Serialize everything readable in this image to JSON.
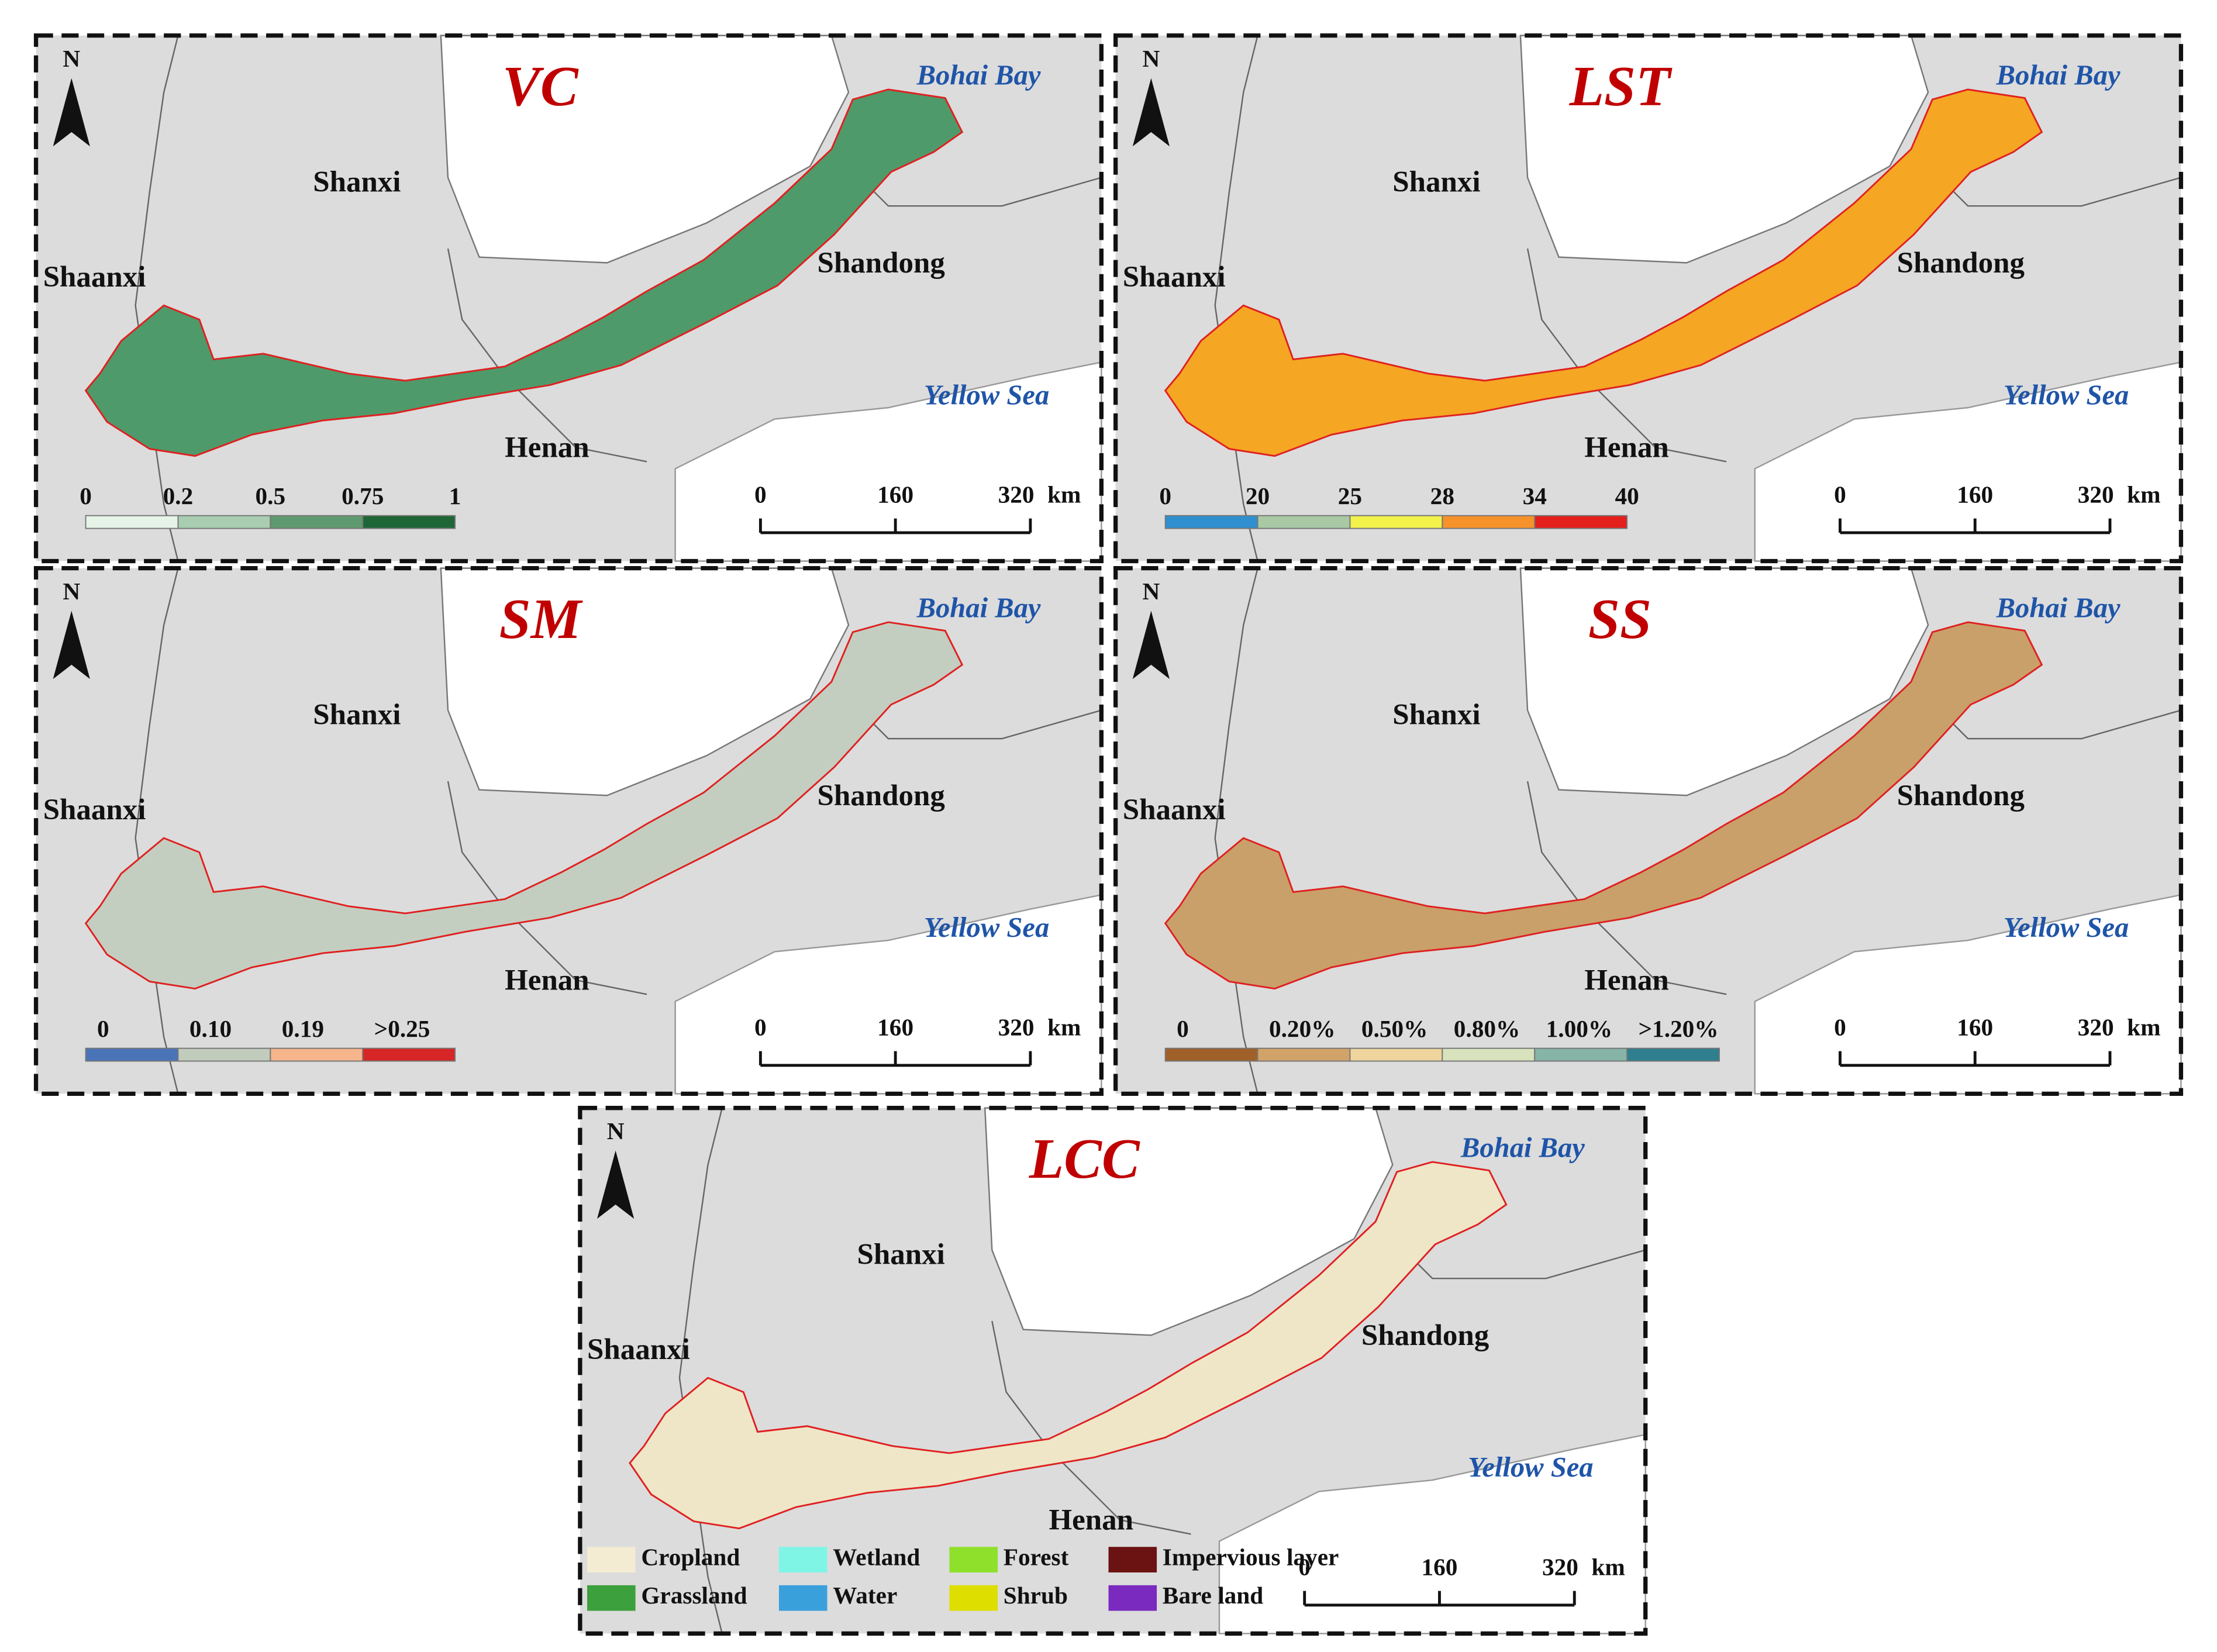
{
  "panels": [
    {
      "title": "VC",
      "north": "N",
      "labels": [
        "Shanxi",
        "Shaanxi",
        "Shandong",
        "Henan",
        "Bohai Bay",
        "Yellow Sea"
      ],
      "scale": [
        "0",
        "160",
        "320",
        "km"
      ],
      "region_color": "#4f9a6a",
      "legend": {
        "labels": [
          "0",
          "0.2",
          "0.5",
          "0.75",
          "1"
        ],
        "colors": [
          "#e6f4e8",
          "#a8cdb0",
          "#5f9a6e",
          "#1f6636"
        ]
      }
    },
    {
      "title": "LST",
      "north": "N",
      "labels": [
        "Shanxi",
        "Shaanxi",
        "Shandong",
        "Henan",
        "Bohai Bay",
        "Yellow Sea"
      ],
      "scale": [
        "0",
        "160",
        "320",
        "km"
      ],
      "region_color": "#f5a623",
      "legend": {
        "labels": [
          "0",
          "20",
          "25",
          "28",
          "34",
          "40"
        ],
        "colors": [
          "#2f8fcf",
          "#a9c9a4",
          "#f2f24a",
          "#f5922a",
          "#e3201c"
        ]
      }
    },
    {
      "title": "SM",
      "north": "N",
      "labels": [
        "Shanxi",
        "Shaanxi",
        "Shandong",
        "Henan",
        "Bohai Bay",
        "Yellow Sea"
      ],
      "scale": [
        "0",
        "160",
        "320",
        "km"
      ],
      "region_color": "#c4cec0",
      "legend": {
        "labels": [
          "0",
          "0.10",
          "0.19",
          ">0.25"
        ],
        "colors": [
          "#4a74b8",
          "#c2ccbd",
          "#f7b58c",
          "#d62626"
        ]
      }
    },
    {
      "title": "SS",
      "north": "N",
      "labels": [
        "Shanxi",
        "Shaanxi",
        "Shandong",
        "Henan",
        "Bohai Bay",
        "Yellow Sea"
      ],
      "scale": [
        "0",
        "160",
        "320",
        "km"
      ],
      "region_color": "#c9a06a",
      "legend": {
        "labels": [
          "0",
          "0.20%",
          "0.50%",
          "0.80%",
          "1.00%",
          ">1.20%"
        ],
        "colors": [
          "#a0602a",
          "#d2a368",
          "#efd59d",
          "#d8e3bd",
          "#86b4a7",
          "#2f7f8f"
        ]
      }
    },
    {
      "title": "LCC",
      "north": "N",
      "labels": [
        "Shanxi",
        "Shaanxi",
        "Shandong",
        "Henan",
        "Bohai Bay",
        "Yellow Sea"
      ],
      "scale": [
        "0",
        "160",
        "320",
        "km"
      ],
      "region_color": "#efe6c8",
      "legend": {
        "items": [
          {
            "name": "Cropland",
            "color": "#f3ecd3"
          },
          {
            "name": "Grassland",
            "color": "#3ca03c"
          },
          {
            "name": "Wetland",
            "color": "#7ff5e6"
          },
          {
            "name": "Water",
            "color": "#3aa0dc"
          },
          {
            "name": "Forest",
            "color": "#8fe02a"
          },
          {
            "name": "Shrub",
            "color": "#dede00"
          },
          {
            "name": "Impervious layer",
            "color": "#6b1212"
          },
          {
            "name": "Bare land",
            "color": "#7b2ac0"
          }
        ]
      }
    }
  ]
}
